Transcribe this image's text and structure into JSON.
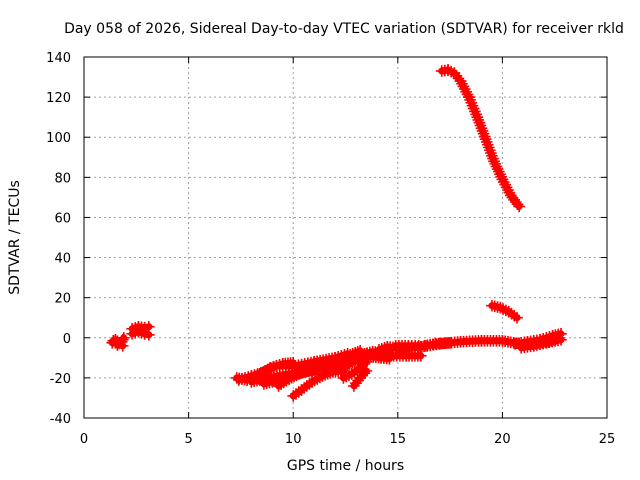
{
  "chart_data": {
    "type": "scatter",
    "title": "Day 058 of 2026, Sidereal Day-to-day VTEC variation (SDTVAR) for receiver rkld",
    "xlabel": "GPS time / hours",
    "ylabel": "SDTVAR / TECUs",
    "xlim": [
      0,
      25
    ],
    "ylim": [
      -40,
      140
    ],
    "xticks": [
      0,
      5,
      10,
      15,
      20,
      25
    ],
    "yticks": [
      -40,
      -20,
      0,
      20,
      40,
      60,
      80,
      100,
      120,
      140
    ],
    "grid": true,
    "series": [
      {
        "name": "SDTVAR",
        "color": "#ff0000",
        "segments": [
          [
            [
              1.4,
              -1.5
            ],
            [
              1.6,
              -3.5
            ],
            [
              1.8,
              -2
            ],
            [
              1.9,
              0
            ]
          ],
          [
            [
              1.35,
              -2.5
            ],
            [
              1.5,
              -1
            ],
            [
              1.7,
              -2.5
            ],
            [
              1.85,
              -4
            ]
          ],
          [
            [
              2.3,
              4.5
            ],
            [
              2.6,
              5.5
            ],
            [
              2.9,
              5
            ],
            [
              3.1,
              5.5
            ]
          ],
          [
            [
              2.3,
              2
            ],
            [
              2.6,
              3
            ],
            [
              2.9,
              2
            ],
            [
              3.1,
              1.5
            ]
          ],
          [
            [
              7.3,
              -20
            ],
            [
              7.8,
              -21
            ],
            [
              8.4,
              -18
            ],
            [
              8.9,
              -15
            ],
            [
              9.5,
              -13
            ],
            [
              10.0,
              -12.5
            ]
          ],
          [
            [
              7.4,
              -21
            ],
            [
              8.0,
              -19
            ],
            [
              8.6,
              -17
            ],
            [
              9.2,
              -14
            ],
            [
              10.1,
              -14
            ],
            [
              11.0,
              -12
            ],
            [
              12.0,
              -10
            ],
            [
              12.6,
              -8
            ]
          ],
          [
            [
              8.0,
              -22
            ],
            [
              8.8,
              -20
            ],
            [
              9.5,
              -18.5
            ],
            [
              10.5,
              -17
            ],
            [
              11.5,
              -15
            ],
            [
              12.3,
              -13
            ],
            [
              13.1,
              -11
            ]
          ],
          [
            [
              8.6,
              -23
            ],
            [
              9.4,
              -21
            ],
            [
              10.2,
              -18
            ],
            [
              11.0,
              -16
            ],
            [
              11.8,
              -14.5
            ],
            [
              12.5,
              -13
            ]
          ],
          [
            [
              9.3,
              -24
            ],
            [
              9.8,
              -20.5
            ],
            [
              10.4,
              -17.5
            ],
            [
              11.0,
              -15.5
            ]
          ],
          [
            [
              10.0,
              -29
            ],
            [
              10.4,
              -26
            ],
            [
              10.9,
              -22
            ],
            [
              11.4,
              -19
            ],
            [
              11.9,
              -17
            ],
            [
              12.4,
              -16.5
            ]
          ],
          [
            [
              12.3,
              -16
            ],
            [
              12.7,
              -13
            ],
            [
              13.2,
              -10
            ],
            [
              13.5,
              -8
            ]
          ],
          [
            [
              12.0,
              -12
            ],
            [
              12.6,
              -9
            ],
            [
              13.2,
              -6.5
            ]
          ],
          [
            [
              12.4,
              -20
            ],
            [
              12.8,
              -18
            ],
            [
              13.2,
              -15
            ],
            [
              13.5,
              -12
            ]
          ],
          [
            [
              12.9,
              -24
            ],
            [
              13.2,
              -20
            ],
            [
              13.5,
              -16.5
            ]
          ],
          [
            [
              13.4,
              -8
            ],
            [
              13.8,
              -7
            ],
            [
              14.3,
              -7.5
            ],
            [
              14.7,
              -8
            ]
          ],
          [
            [
              13.7,
              -9.5
            ],
            [
              14.2,
              -10
            ],
            [
              14.6,
              -10.5
            ]
          ],
          [
            [
              14.1,
              -6
            ],
            [
              14.5,
              -4.5
            ],
            [
              14.9,
              -5
            ]
          ],
          [
            [
              14.9,
              -4
            ],
            [
              15.5,
              -4
            ],
            [
              16.0,
              -4
            ]
          ],
          [
            [
              14.8,
              -9
            ],
            [
              15.4,
              -9
            ],
            [
              16.1,
              -9
            ]
          ],
          [
            [
              15.1,
              -6
            ],
            [
              15.8,
              -5
            ],
            [
              16.4,
              -4
            ],
            [
              17.0,
              -3
            ],
            [
              18.0,
              -2
            ],
            [
              19.0,
              -1.5
            ],
            [
              20.0,
              -1.5
            ],
            [
              20.8,
              -3
            ]
          ],
          [
            [
              16.0,
              -5
            ],
            [
              16.3,
              -4
            ],
            [
              16.8,
              -3
            ],
            [
              17.5,
              -2.5
            ]
          ],
          [
            [
              20.6,
              -3
            ],
            [
              21.2,
              -2
            ],
            [
              21.8,
              -1
            ],
            [
              22.4,
              1
            ],
            [
              22.8,
              2
            ]
          ],
          [
            [
              20.9,
              -5
            ],
            [
              21.5,
              -4
            ],
            [
              22.1,
              -2.5
            ],
            [
              22.8,
              -1
            ]
          ],
          [
            [
              21.0,
              -3.5
            ],
            [
              21.6,
              -3
            ],
            [
              22.2,
              -2
            ],
            [
              22.7,
              0
            ]
          ],
          [
            [
              19.5,
              16
            ],
            [
              19.9,
              15
            ],
            [
              20.3,
              13
            ],
            [
              20.7,
              10
            ]
          ],
          [
            [
              17.1,
              133
            ],
            [
              17.4,
              133.5
            ],
            [
              17.7,
              132
            ],
            [
              18.0,
              128
            ],
            [
              18.4,
              120
            ],
            [
              18.8,
              110
            ],
            [
              19.2,
              99
            ],
            [
              19.6,
              88
            ],
            [
              20.0,
              79
            ],
            [
              20.4,
              71
            ],
            [
              20.8,
              65.5
            ]
          ]
        ]
      }
    ]
  }
}
